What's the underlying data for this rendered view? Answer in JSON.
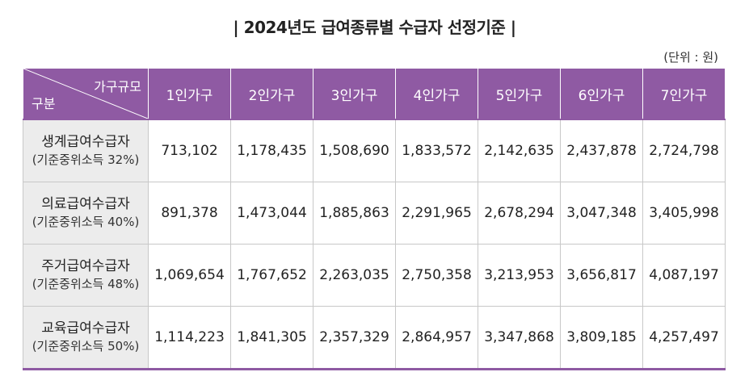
{
  "title": "| 2024년도 급여종류별 수급자 선정기준 |",
  "unit": "(단위 : 원)",
  "header": {
    "corner_top": "가구규모",
    "corner_bottom": "구분",
    "columns": [
      "1인가구",
      "2인가구",
      "3인가구",
      "4인가구",
      "5인가구",
      "6인가구",
      "7인가구"
    ]
  },
  "rows": [
    {
      "label": "생계급여수급자",
      "sub": "(기준중위소득 32%)",
      "values": [
        "713,102",
        "1,178,435",
        "1,508,690",
        "1,833,572",
        "2,142,635",
        "2,437,878",
        "2,724,798"
      ]
    },
    {
      "label": "의료급여수급자",
      "sub": "(기준중위소득 40%)",
      "values": [
        "891,378",
        "1,473,044",
        "1,885,863",
        "2,291,965",
        "2,678,294",
        "3,047,348",
        "3,405,998"
      ]
    },
    {
      "label": "주거급여수급자",
      "sub": "(기준중위소득 48%)",
      "values": [
        "1,069,654",
        "1,767,652",
        "2,263,035",
        "2,750,358",
        "3,213,953",
        "3,656,817",
        "4,087,197"
      ]
    },
    {
      "label": "교육급여수급자",
      "sub": "(기준중위소득 50%)",
      "values": [
        "1,114,223",
        "1,841,305",
        "2,357,329",
        "2,864,957",
        "3,347,868",
        "3,809,185",
        "4,257,497"
      ]
    }
  ],
  "colors": {
    "header_bg": "#8f5aa3",
    "rowhead_bg": "#ececec"
  }
}
